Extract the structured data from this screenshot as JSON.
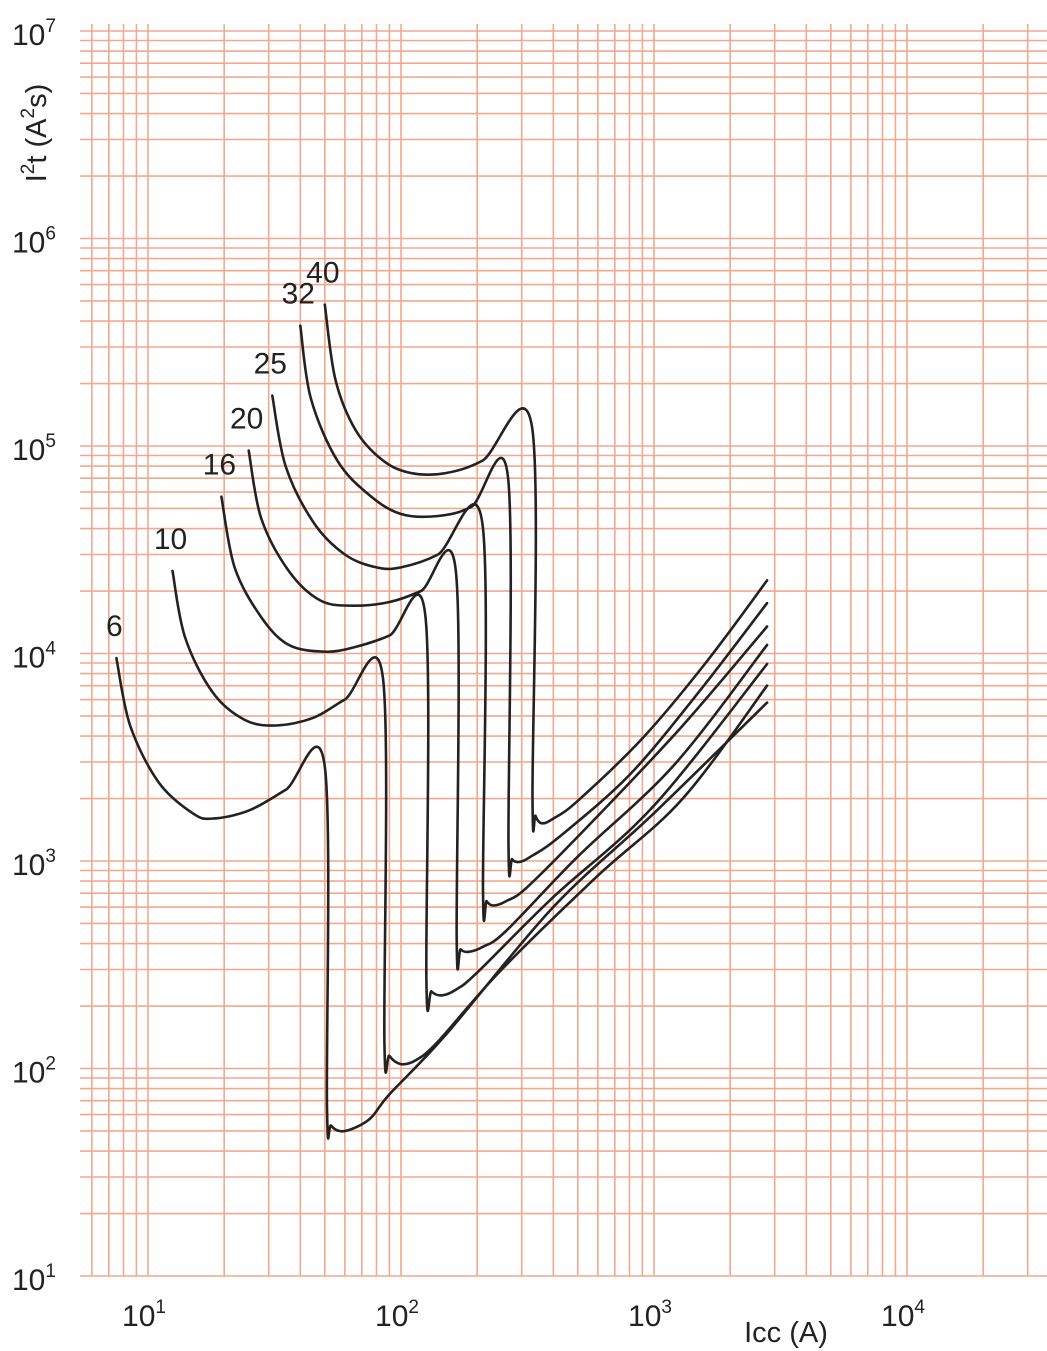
{
  "chart_data": {
    "type": "line",
    "xscale": "log",
    "yscale": "log",
    "xlim": [
      5,
      40000
    ],
    "ylim": [
      10,
      10000000
    ],
    "grid": true,
    "xlabel": "Icc (A)",
    "ylabel": {
      "base": "I",
      "sup1": "2",
      "mid": "t (A",
      "sup2": "2",
      "end": "s)"
    },
    "xticks": [
      {
        "value": 10,
        "base": "10",
        "exp": "1"
      },
      {
        "value": 100,
        "base": "10",
        "exp": "2"
      },
      {
        "value": 1000,
        "base": "10",
        "exp": "3"
      },
      {
        "value": 10000,
        "base": "10",
        "exp": "4"
      }
    ],
    "yticks": [
      {
        "value": 10,
        "base": "10",
        "exp": "1"
      },
      {
        "value": 100,
        "base": "10",
        "exp": "2"
      },
      {
        "value": 1000,
        "base": "10",
        "exp": "3"
      },
      {
        "value": 10000,
        "base": "10",
        "exp": "4"
      },
      {
        "value": 100000,
        "base": "10",
        "exp": "5"
      },
      {
        "value": 1000000,
        "base": "10",
        "exp": "6"
      },
      {
        "value": 10000000,
        "base": "10",
        "exp": "7"
      }
    ],
    "series": [
      {
        "name": "6",
        "points": [
          [
            7.5,
            9500
          ],
          [
            8.5,
            4500
          ],
          [
            11,
            2400
          ],
          [
            15,
            1700
          ],
          [
            18,
            1600
          ],
          [
            25,
            1750
          ],
          [
            35,
            2200
          ],
          [
            50,
            2850
          ],
          [
            51,
            65
          ],
          [
            53,
            53
          ],
          [
            60,
            50
          ],
          [
            75,
            57
          ],
          [
            90,
            75
          ],
          [
            150,
            145
          ],
          [
            400,
            600
          ],
          [
            1000,
            1700
          ],
          [
            2800,
            5800
          ]
        ]
      },
      {
        "name": "10",
        "points": [
          [
            12.5,
            25000
          ],
          [
            14,
            12000
          ],
          [
            18,
            6500
          ],
          [
            24,
            4800
          ],
          [
            32,
            4500
          ],
          [
            45,
            4900
          ],
          [
            60,
            6000
          ],
          [
            85,
            7500
          ],
          [
            86,
            135
          ],
          [
            90,
            115
          ],
          [
            100,
            105
          ],
          [
            115,
            110
          ],
          [
            140,
            135
          ],
          [
            250,
            300
          ],
          [
            600,
            850
          ],
          [
            1300,
            2000
          ],
          [
            2800,
            7000
          ]
        ]
      },
      {
        "name": "16",
        "points": [
          [
            19.5,
            57000
          ],
          [
            22,
            26000
          ],
          [
            28,
            15000
          ],
          [
            36,
            11000
          ],
          [
            50,
            10200
          ],
          [
            65,
            10700
          ],
          [
            90,
            12200
          ],
          [
            125,
            15000
          ],
          [
            126,
            265
          ],
          [
            132,
            235
          ],
          [
            145,
            225
          ],
          [
            165,
            240
          ],
          [
            200,
            290
          ],
          [
            400,
            670
          ],
          [
            1000,
            1850
          ],
          [
            2800,
            8900
          ]
        ]
      },
      {
        "name": "20",
        "points": [
          [
            25,
            95000
          ],
          [
            28,
            45000
          ],
          [
            36,
            25000
          ],
          [
            48,
            18000
          ],
          [
            65,
            17000
          ],
          [
            90,
            17700
          ],
          [
            120,
            20000
          ],
          [
            165,
            24500
          ],
          [
            166,
            420
          ],
          [
            172,
            375
          ],
          [
            185,
            365
          ],
          [
            210,
            385
          ],
          [
            260,
            460
          ],
          [
            500,
            1050
          ],
          [
            1200,
            2900
          ],
          [
            2800,
            11000
          ]
        ]
      },
      {
        "name": "25",
        "points": [
          [
            31,
            175000
          ],
          [
            35,
            80000
          ],
          [
            45,
            43000
          ],
          [
            60,
            30000
          ],
          [
            80,
            26000
          ],
          [
            100,
            26000
          ],
          [
            140,
            30000
          ],
          [
            210,
            42000
          ],
          [
            211,
            720
          ],
          [
            218,
            640
          ],
          [
            232,
            610
          ],
          [
            260,
            640
          ],
          [
            320,
            760
          ],
          [
            600,
            1650
          ],
          [
            1300,
            4500
          ],
          [
            2800,
            13500
          ]
        ]
      },
      {
        "name": "32",
        "points": [
          [
            40,
            380000
          ],
          [
            44,
            170000
          ],
          [
            56,
            85000
          ],
          [
            75,
            58000
          ],
          [
            100,
            47000
          ],
          [
            140,
            46000
          ],
          [
            190,
            51000
          ],
          [
            265,
            70000
          ],
          [
            266,
            1200
          ],
          [
            275,
            1020
          ],
          [
            295,
            990
          ],
          [
            330,
            1060
          ],
          [
            420,
            1300
          ],
          [
            800,
            2600
          ],
          [
            1500,
            6500
          ],
          [
            2800,
            17500
          ]
        ]
      },
      {
        "name": "40",
        "points": [
          [
            50,
            480000
          ],
          [
            55,
            210000
          ],
          [
            66,
            120000
          ],
          [
            85,
            85000
          ],
          [
            110,
            74000
          ],
          [
            150,
            74000
          ],
          [
            210,
            85000
          ],
          [
            330,
            122000
          ],
          [
            331,
            2000
          ],
          [
            340,
            1650
          ],
          [
            360,
            1520
          ],
          [
            400,
            1600
          ],
          [
            500,
            1950
          ],
          [
            900,
            3900
          ],
          [
            1600,
            9000
          ],
          [
            2800,
            22500
          ]
        ]
      }
    ]
  }
}
